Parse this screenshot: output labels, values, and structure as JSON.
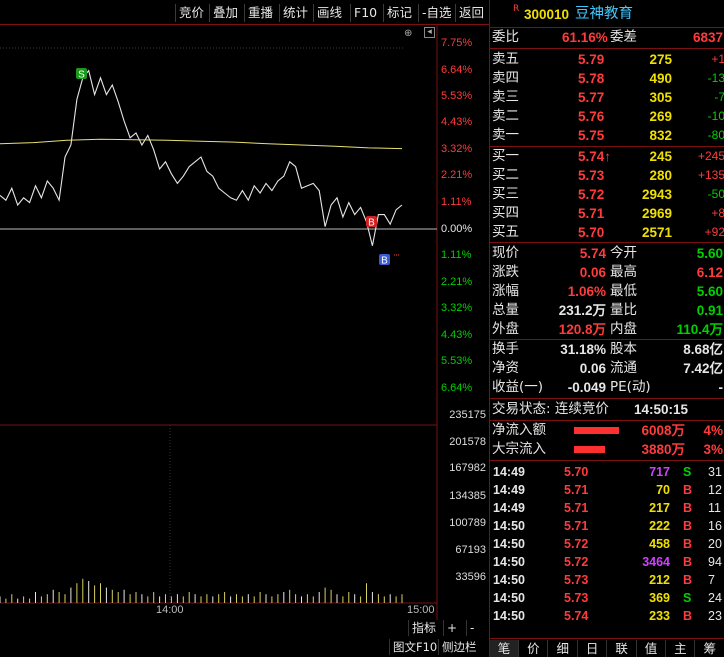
{
  "toolbar": {
    "items": [
      "竞价",
      "叠加",
      "重播",
      "统计",
      "画线",
      "F10",
      "标记",
      "-自选",
      "返回"
    ]
  },
  "chart_data": {
    "type": "line",
    "x_ticks": [
      "14:00",
      "15:00"
    ],
    "y_pct_axis": [
      "7.75%",
      "6.64%",
      "5.53%",
      "4.43%",
      "3.32%",
      "2.21%",
      "1.11%",
      "0.00%",
      "1.11%",
      "2.21%",
      "3.32%",
      "4.43%",
      "5.53%",
      "6.64%"
    ],
    "vol_axis": [
      "235175",
      "201578",
      "167982",
      "134385",
      "100789",
      "67193",
      "33596"
    ],
    "price_pct_series": [
      1.4,
      1.2,
      1.7,
      1.0,
      1.3,
      1.1,
      1.8,
      1.3,
      2.0,
      1.7,
      1.2,
      3.0,
      3.5,
      5.4,
      6.3,
      6.6,
      5.6,
      6.3,
      5.6,
      6.0,
      5.3,
      4.5,
      3.8,
      4.0,
      3.5,
      3.9,
      3.3,
      2.5,
      2.8,
      2.3,
      1.9,
      2.2,
      2.6,
      2.8,
      3.0,
      2.4,
      2.2,
      1.7,
      1.5,
      1.3,
      1.2,
      1.6,
      1.2,
      1.8,
      1.5,
      1.9,
      1.6,
      2.0,
      2.2,
      2.8,
      2.6,
      1.7,
      1.8,
      1.9,
      1.6,
      0.1,
      1.0,
      1.3,
      0.5,
      1.1,
      0.6,
      0.9,
      0.3,
      -0.7,
      0.6,
      0.6,
      0.2,
      0.8,
      1.0
    ],
    "avg_pct_series": [
      3.55,
      3.6,
      3.7,
      3.74,
      3.72,
      3.7,
      3.66,
      3.62,
      3.55,
      3.5,
      3.45,
      3.38,
      3.35
    ],
    "markers": [
      {
        "label": "S",
        "kind": "sell"
      },
      {
        "label": "B",
        "kind": "buy"
      },
      {
        "label": "B",
        "kind": "buy"
      }
    ],
    "volume_series": [
      3,
      2,
      4,
      2,
      3,
      2,
      5,
      3,
      4,
      6,
      5,
      4,
      7,
      9,
      11,
      10,
      8,
      9,
      7,
      6,
      5,
      6,
      4,
      5,
      4,
      3,
      5,
      3,
      4,
      3,
      4,
      3,
      5,
      4,
      3,
      4,
      3,
      4,
      5,
      3,
      4,
      3,
      4,
      3,
      5,
      4,
      3,
      4,
      5,
      6,
      4,
      3,
      4,
      3,
      5,
      7,
      6,
      4,
      3,
      5,
      4,
      3,
      9,
      5,
      4,
      3,
      4,
      3,
      4
    ]
  },
  "bottom": {
    "indicator": "指标",
    "plus": "+",
    "minus": "-",
    "tuwen": "图文F10",
    "cebian": "侧边栏 «"
  },
  "stock": {
    "flag": "R",
    "code": "300010",
    "name": "豆神教育"
  },
  "weibi": {
    "label1": "委比",
    "val1": "61.16%",
    "label2": "委差",
    "val2": "6837"
  },
  "asks": [
    {
      "label": "卖五",
      "price": "5.79",
      "vol": "275",
      "chg": "+1"
    },
    {
      "label": "卖四",
      "price": "5.78",
      "vol": "490",
      "chg": "-13"
    },
    {
      "label": "卖三",
      "price": "5.77",
      "vol": "305",
      "chg": "-7"
    },
    {
      "label": "卖二",
      "price": "5.76",
      "vol": "269",
      "chg": "-10"
    },
    {
      "label": "卖一",
      "price": "5.75",
      "vol": "832",
      "chg": "-80"
    }
  ],
  "bids": [
    {
      "label": "买一",
      "price": "5.74↑",
      "vol": "245",
      "chg": "+245"
    },
    {
      "label": "买二",
      "price": "5.73",
      "vol": "280",
      "chg": "+135"
    },
    {
      "label": "买三",
      "price": "5.72",
      "vol": "2943",
      "chg": "-50"
    },
    {
      "label": "买四",
      "price": "5.71",
      "vol": "2969",
      "chg": "+8"
    },
    {
      "label": "买五",
      "price": "5.70",
      "vol": "2571",
      "chg": "+92"
    }
  ],
  "quote": [
    {
      "l1": "现价",
      "v1": "5.74",
      "l2": "今开",
      "v2": "5.60"
    },
    {
      "l1": "涨跌",
      "v1": "0.06",
      "l2": "最高",
      "v2": "6.12"
    },
    {
      "l1": "涨幅",
      "v1": "1.06%",
      "l2": "最低",
      "v2": "5.60"
    },
    {
      "l1": "总量",
      "v1": "231.2万",
      "l2": "量比",
      "v2": "0.91"
    },
    {
      "l1": "外盘",
      "v1": "120.8万",
      "l2": "内盘",
      "v2": "110.4万"
    }
  ],
  "fund": [
    {
      "l1": "换手",
      "v1": "31.18%",
      "l2": "股本",
      "v2": "8.68亿"
    },
    {
      "l1": "净资",
      "v1": "0.06",
      "l2": "流通",
      "v2": "7.42亿"
    },
    {
      "l1": "收益(一)",
      "v1": "-0.049",
      "l2": "PE(动)",
      "v2": "-"
    }
  ],
  "status": {
    "label": "交易状态: 连续竞价",
    "time": "14:50:15"
  },
  "flows": [
    {
      "label": "净流入额",
      "value": "6008万",
      "pct": "4%",
      "bar": 0.8
    },
    {
      "label": "大宗流入",
      "value": "3880万",
      "pct": "3%",
      "bar": 0.55
    }
  ],
  "ticks": [
    {
      "time": "14:49",
      "price": "5.70",
      "vol": "717",
      "side": "S",
      "n": "31",
      "volcolor": "mag"
    },
    {
      "time": "14:49",
      "price": "5.71",
      "vol": "70",
      "side": "B",
      "n": "12",
      "volcolor": "yel"
    },
    {
      "time": "14:49",
      "price": "5.71",
      "vol": "217",
      "side": "B",
      "n": "11",
      "volcolor": "yel"
    },
    {
      "time": "14:50",
      "price": "5.71",
      "vol": "222",
      "side": "B",
      "n": "16",
      "volcolor": "yel"
    },
    {
      "time": "14:50",
      "price": "5.72",
      "vol": "458",
      "side": "B",
      "n": "20",
      "volcolor": "yel"
    },
    {
      "time": "14:50",
      "price": "5.72",
      "vol": "3464",
      "side": "B",
      "n": "94",
      "volcolor": "mag"
    },
    {
      "time": "14:50",
      "price": "5.73",
      "vol": "212",
      "side": "B",
      "n": "7",
      "volcolor": "yel"
    },
    {
      "time": "14:50",
      "price": "5.73",
      "vol": "369",
      "side": "S",
      "n": "24",
      "volcolor": "yel"
    },
    {
      "time": "14:50",
      "price": "5.74",
      "vol": "233",
      "side": "B",
      "n": "23",
      "volcolor": "yel"
    }
  ],
  "tabs": [
    "笔",
    "价",
    "细",
    "日",
    "联",
    "值",
    "主",
    "筹"
  ]
}
